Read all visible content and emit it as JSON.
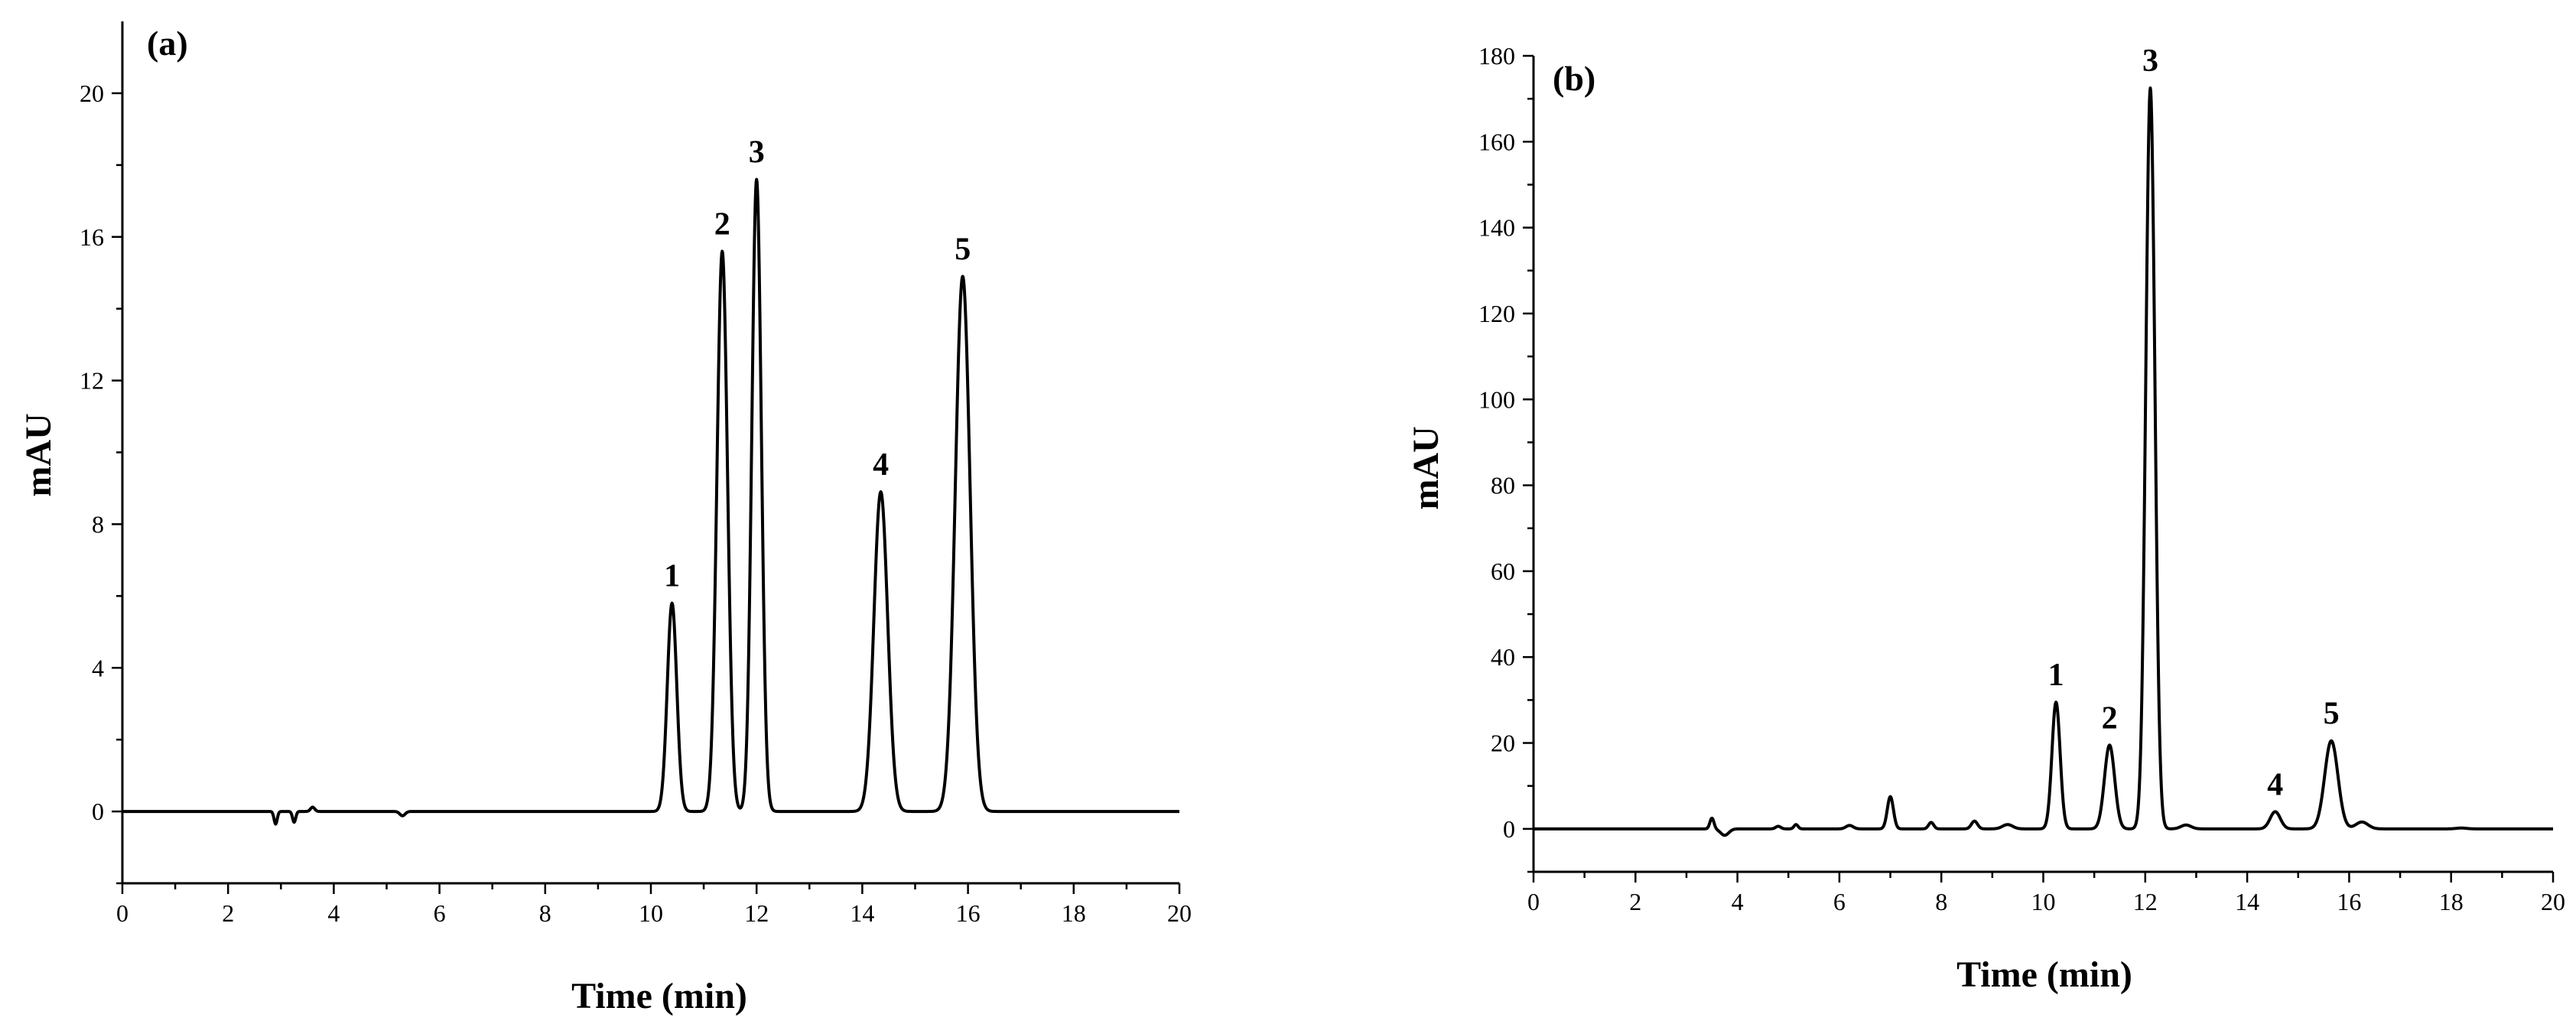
{
  "chart_data": [
    {
      "panel": "(a)",
      "type": "line",
      "xlabel": "Time (min)",
      "ylabel": "mAU",
      "xlim": [
        0,
        20
      ],
      "ylim": [
        -2,
        22
      ],
      "x_ticks": [
        "0",
        "2",
        "4",
        "6",
        "8",
        "10",
        "12",
        "14",
        "16",
        "18",
        "20"
      ],
      "y_ticks": [
        "0",
        "4",
        "8",
        "12",
        "16",
        "20"
      ],
      "grid": false,
      "peaks": [
        {
          "label": "1",
          "time": 10.4,
          "height": 5.8,
          "width": 0.09
        },
        {
          "label": "2",
          "time": 11.35,
          "height": 15.6,
          "width": 0.1
        },
        {
          "label": "3",
          "time": 12.0,
          "height": 17.6,
          "width": 0.09
        },
        {
          "label": "4",
          "time": 14.35,
          "height": 8.9,
          "width": 0.13
        },
        {
          "label": "5",
          "time": 15.9,
          "height": 14.9,
          "width": 0.14
        }
      ],
      "baseline_features": [
        {
          "time": 2.9,
          "height": -0.35,
          "width": 0.03
        },
        {
          "time": 3.25,
          "height": -0.3,
          "width": 0.03
        },
        {
          "time": 3.6,
          "height": 0.12,
          "width": 0.04
        },
        {
          "time": 5.3,
          "height": -0.12,
          "width": 0.05
        }
      ]
    },
    {
      "panel": "(b)",
      "type": "line",
      "xlabel": "Time (min)",
      "ylabel": "mAU",
      "xlim": [
        0,
        20
      ],
      "ylim": [
        -10,
        180
      ],
      "x_ticks": [
        "0",
        "2",
        "4",
        "6",
        "8",
        "10",
        "12",
        "14",
        "16",
        "18",
        "20"
      ],
      "y_ticks": [
        "0",
        "20",
        "40",
        "60",
        "80",
        "100",
        "120",
        "140",
        "160",
        "180"
      ],
      "grid": false,
      "peaks": [
        {
          "label": "1",
          "time": 10.25,
          "height": 29.5,
          "width": 0.08
        },
        {
          "label": "2",
          "time": 11.3,
          "height": 19.5,
          "width": 0.1
        },
        {
          "label": "3",
          "time": 12.1,
          "height": 172.5,
          "width": 0.09
        },
        {
          "label": "4",
          "time": 14.55,
          "height": 4.0,
          "width": 0.1
        },
        {
          "label": "5",
          "time": 15.65,
          "height": 20.5,
          "width": 0.13
        }
      ],
      "baseline_features": [
        {
          "time": 3.5,
          "height": 2.5,
          "width": 0.04
        },
        {
          "time": 3.75,
          "height": -1.5,
          "width": 0.08
        },
        {
          "time": 4.8,
          "height": 0.6,
          "width": 0.05
        },
        {
          "time": 5.15,
          "height": 1.0,
          "width": 0.04
        },
        {
          "time": 6.2,
          "height": 0.8,
          "width": 0.07
        },
        {
          "time": 7.0,
          "height": 7.5,
          "width": 0.06
        },
        {
          "time": 7.8,
          "height": 1.5,
          "width": 0.05
        },
        {
          "time": 8.65,
          "height": 1.8,
          "width": 0.06
        },
        {
          "time": 9.3,
          "height": 1.0,
          "width": 0.1
        },
        {
          "time": 12.8,
          "height": 0.9,
          "width": 0.1
        },
        {
          "time": 16.25,
          "height": 1.6,
          "width": 0.12
        },
        {
          "time": 18.2,
          "height": 0.2,
          "width": 0.1
        }
      ]
    }
  ]
}
